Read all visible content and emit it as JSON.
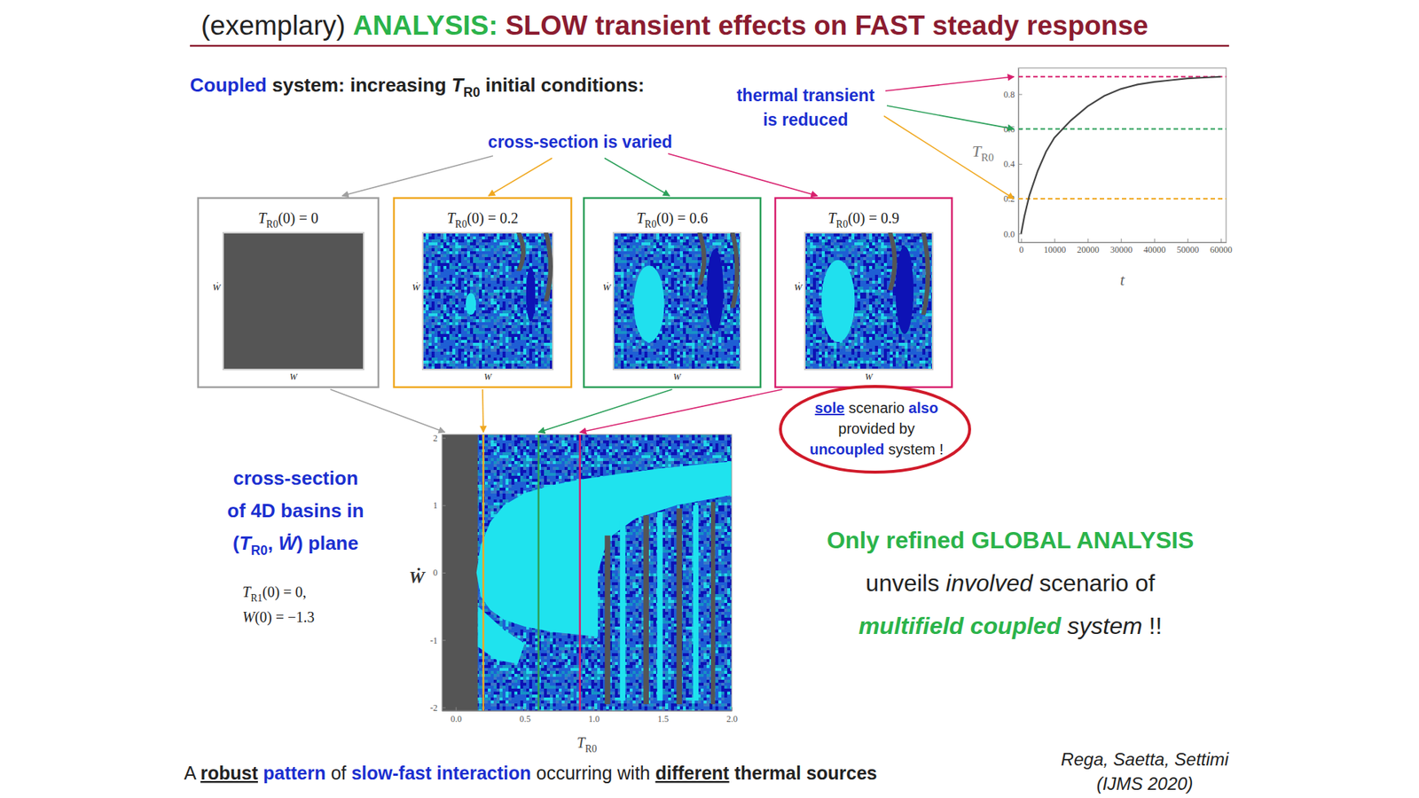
{
  "title": [
    {
      "text": "(exemplary) ",
      "color": "#222222"
    },
    {
      "text": "ANALYSIS:",
      "color": "#2bb34a",
      "style": "bold"
    },
    {
      "text": " SLOW transient effects on FAST steady response",
      "color": "#8b1c30",
      "style": "bold"
    }
  ],
  "subtitle": [
    {
      "text": "Coupled",
      "color": "#1b2fd0",
      "style": "bold"
    },
    {
      "text": " system: increasing ",
      "color": "#222222",
      "style": "bold"
    },
    {
      "text": "T",
      "sub": "R0",
      "color": "#222222",
      "style": "bold italic"
    },
    {
      "text": " initial conditions:",
      "color": "#222222",
      "style": "bold"
    }
  ],
  "thermal_note": [
    [
      {
        "text": "thermal transient"
      }
    ],
    [
      {
        "text": "is reduced"
      }
    ]
  ],
  "cross_section_note": [
    {
      "text": "cross-section is varied"
    }
  ],
  "panels": [
    {
      "title": [
        {
          "text": "T",
          "sub": "R0",
          "style": "italic"
        },
        {
          "text": "(0) = 0"
        }
      ],
      "color": "#a0a0a0"
    },
    {
      "title": [
        {
          "text": "T",
          "sub": "R0",
          "style": "italic"
        },
        {
          "text": "(0) = 0.2"
        }
      ],
      "color": "#f0a820"
    },
    {
      "title": [
        {
          "text": "T",
          "sub": "R0",
          "style": "italic"
        },
        {
          "text": "(0) = 0.6"
        }
      ],
      "color": "#2ca05a"
    },
    {
      "title": [
        {
          "text": "T",
          "sub": "R0",
          "style": "italic"
        },
        {
          "text": "(0) = 0.9"
        }
      ],
      "color": "#d8206e"
    }
  ],
  "panel_axes": {
    "x": [
      {
        "text": "W",
        "style": "italic"
      }
    ],
    "y": [
      {
        "text": "Ẇ",
        "style": "italic"
      }
    ]
  },
  "sole_note": [
    [
      {
        "text": "sole",
        "color": "#1b2fd0",
        "style": "bold underline"
      },
      {
        "text": " scenario ",
        "color": "#222222"
      },
      {
        "text": "also",
        "color": "#1b2fd0",
        "style": "bold"
      }
    ],
    [
      {
        "text": "provided by",
        "color": "#222222"
      }
    ],
    [
      {
        "text": "uncoupled",
        "color": "#1b2fd0",
        "style": "bold"
      },
      {
        "text": " system !",
        "color": "#222222"
      }
    ]
  ],
  "cross_section_label": [
    [
      {
        "text": "cross-section"
      }
    ],
    [
      {
        "text": "of 4D basins in"
      }
    ],
    [
      {
        "text": "("
      },
      {
        "text": "T",
        "sub": "R0",
        "style": "italic"
      },
      {
        "text": ", "
      },
      {
        "text": "Ẇ",
        "style": "italic"
      },
      {
        "text": ") plane"
      }
    ]
  ],
  "initial_conditions": [
    [
      {
        "text": "T",
        "sub": "R1",
        "style": "italic"
      },
      {
        "text": "(0) = 0,"
      }
    ],
    [
      {
        "text": "W",
        "style": "italic"
      },
      {
        "text": "(0) = −1.3"
      }
    ]
  ],
  "conclusion": [
    [
      {
        "text": "Only refined GLOBAL ANALYSIS",
        "color": "#2bb34a",
        "style": "bold"
      }
    ],
    [
      {
        "text": "unveils ",
        "color": "#222222"
      },
      {
        "text": "involved",
        "color": "#222222",
        "style": "italic"
      },
      {
        "text": " scenario of",
        "color": "#222222"
      }
    ],
    [
      {
        "text": "multifield coupled",
        "color": "#2bb34a",
        "style": "bold italic"
      },
      {
        "text": " system",
        "color": "#222222",
        "style": "italic"
      },
      {
        "text": " !!",
        "color": "#222222"
      }
    ]
  ],
  "footer": [
    {
      "text": "A ",
      "color": "#222222"
    },
    {
      "text": "robust",
      "color": "#222222",
      "style": "bold underline"
    },
    {
      "text": " ",
      "color": "#222222"
    },
    {
      "text": "pattern",
      "color": "#1b2fd0",
      "style": "bold"
    },
    {
      "text": " of ",
      "color": "#222222"
    },
    {
      "text": "slow-fast interaction",
      "color": "#1b2fd0",
      "style": "bold"
    },
    {
      "text": " occurring with ",
      "color": "#222222"
    },
    {
      "text": "different",
      "color": "#222222",
      "style": "bold underline"
    },
    {
      "text": " thermal sources",
      "color": "#222222",
      "style": "bold"
    }
  ],
  "credit": [
    [
      {
        "text": "Rega, Saetta, Settimi"
      }
    ],
    [
      {
        "text": "(IJMS 2020)"
      }
    ]
  ],
  "chart_data": [
    {
      "type": "line",
      "x_label": [
        {
          "text": "t",
          "style": "italic"
        }
      ],
      "y_label": [
        {
          "text": "T",
          "sub": "R0",
          "style": "italic"
        }
      ],
      "x": [
        0,
        1000,
        2500,
        5000,
        7500,
        10000,
        12500,
        15000,
        20000,
        25000,
        30000,
        35000,
        40000,
        45000,
        50000,
        55000,
        60000
      ],
      "series": [
        {
          "color": "#444444",
          "values": [
            0,
            0.1,
            0.22,
            0.36,
            0.47,
            0.55,
            0.6,
            0.65,
            0.73,
            0.79,
            0.83,
            0.855,
            0.87,
            0.88,
            0.89,
            0.895,
            0.9
          ]
        }
      ],
      "hlines": [
        {
          "value": 0.9,
          "color": "#d8206e"
        },
        {
          "value": 0.6,
          "color": "#2ca05a"
        },
        {
          "value": 0.2,
          "color": "#f0a820"
        }
      ],
      "xlim": [
        -800,
        61600
      ],
      "xticks": [
        0,
        10000,
        20000,
        30000,
        40000,
        50000,
        60000
      ],
      "ylim": [
        -0.05,
        0.95
      ],
      "yticks": [
        {
          "value": 0,
          "label": "0.0"
        },
        0.2,
        0.4,
        0.6,
        0.8
      ],
      "grid": false
    },
    {
      "type": "basin",
      "x_label": [
        {
          "text": "T",
          "sub": "R0",
          "style": "italic"
        }
      ],
      "y_label": [
        {
          "text": "Ẇ",
          "style": "bold italic"
        }
      ],
      "xlim": [
        -0.1,
        2.0
      ],
      "xticks": [
        {
          "value": 0,
          "label": "0.0"
        },
        0.5,
        {
          "value": 1,
          "label": "1.0"
        },
        1.5,
        {
          "value": 2,
          "label": "2.0"
        }
      ],
      "ylim": [
        -2.05,
        2.05
      ],
      "yticks": [
        -2,
        -1,
        0,
        1,
        2
      ],
      "regions": [
        {
          "color": "#555555",
          "x": [
            -0.1,
            0.16,
            0.16,
            -0.1
          ],
          "y": [
            -2.05,
            -2.05,
            2.05,
            2.05
          ]
        },
        {
          "color": "#1fe3ee",
          "x": [
            0.15,
            0.18,
            0.25,
            0.35,
            0.5,
            0.7,
            0.9,
            1.2,
            1.5,
            2.0,
            2.0,
            1.6,
            1.3,
            1.1,
            1.03,
            1.03,
            0.9,
            0.7,
            0.5,
            0.35,
            0.25,
            0.18
          ],
          "y": [
            0.0,
            0.4,
            0.75,
            1.0,
            1.18,
            1.3,
            1.38,
            1.47,
            1.55,
            1.65,
            1.15,
            1.0,
            0.8,
            0.5,
            0.0,
            -0.95,
            -0.92,
            -0.88,
            -0.8,
            -0.7,
            -0.55,
            -0.35
          ]
        },
        {
          "color": "#1fe3ee",
          "x": [
            0.16,
            0.35,
            0.5,
            0.45,
            0.3,
            0.16
          ],
          "y": [
            -0.5,
            -0.85,
            -1.05,
            -1.35,
            -1.3,
            -1.1
          ]
        },
        {
          "color": "#555555",
          "x": [
            1.08,
            1.12,
            1.12,
            1.08
          ],
          "y": [
            -1.95,
            -1.95,
            0.55,
            0.55
          ]
        },
        {
          "color": "#1fe3ee",
          "x": [
            1.19,
            1.23,
            1.23,
            1.19
          ],
          "y": [
            -1.9,
            -1.9,
            0.75,
            0.75
          ]
        },
        {
          "color": "#555555",
          "x": [
            1.36,
            1.4,
            1.4,
            1.36
          ],
          "y": [
            -1.95,
            -1.95,
            0.85,
            0.85
          ]
        },
        {
          "color": "#1fe3ee",
          "x": [
            1.46,
            1.5,
            1.5,
            1.46
          ],
          "y": [
            -1.9,
            -1.9,
            0.9,
            0.9
          ]
        },
        {
          "color": "#555555",
          "x": [
            1.6,
            1.64,
            1.64,
            1.6
          ],
          "y": [
            -1.95,
            -1.95,
            0.95,
            0.95
          ]
        },
        {
          "color": "#1fe3ee",
          "x": [
            1.72,
            1.76,
            1.76,
            1.72
          ],
          "y": [
            -1.9,
            -1.9,
            1.0,
            1.0
          ]
        },
        {
          "color": "#555555",
          "x": [
            1.85,
            1.88,
            1.88,
            1.85
          ],
          "y": [
            -1.95,
            -1.95,
            1.05,
            1.05
          ]
        }
      ],
      "vlines": [
        {
          "value": 0.2,
          "color": "#f0a820"
        },
        {
          "value": 0.6,
          "color": "#2ca05a"
        },
        {
          "value": 0.9,
          "color": "#d8206e"
        }
      ],
      "grid": false
    }
  ]
}
